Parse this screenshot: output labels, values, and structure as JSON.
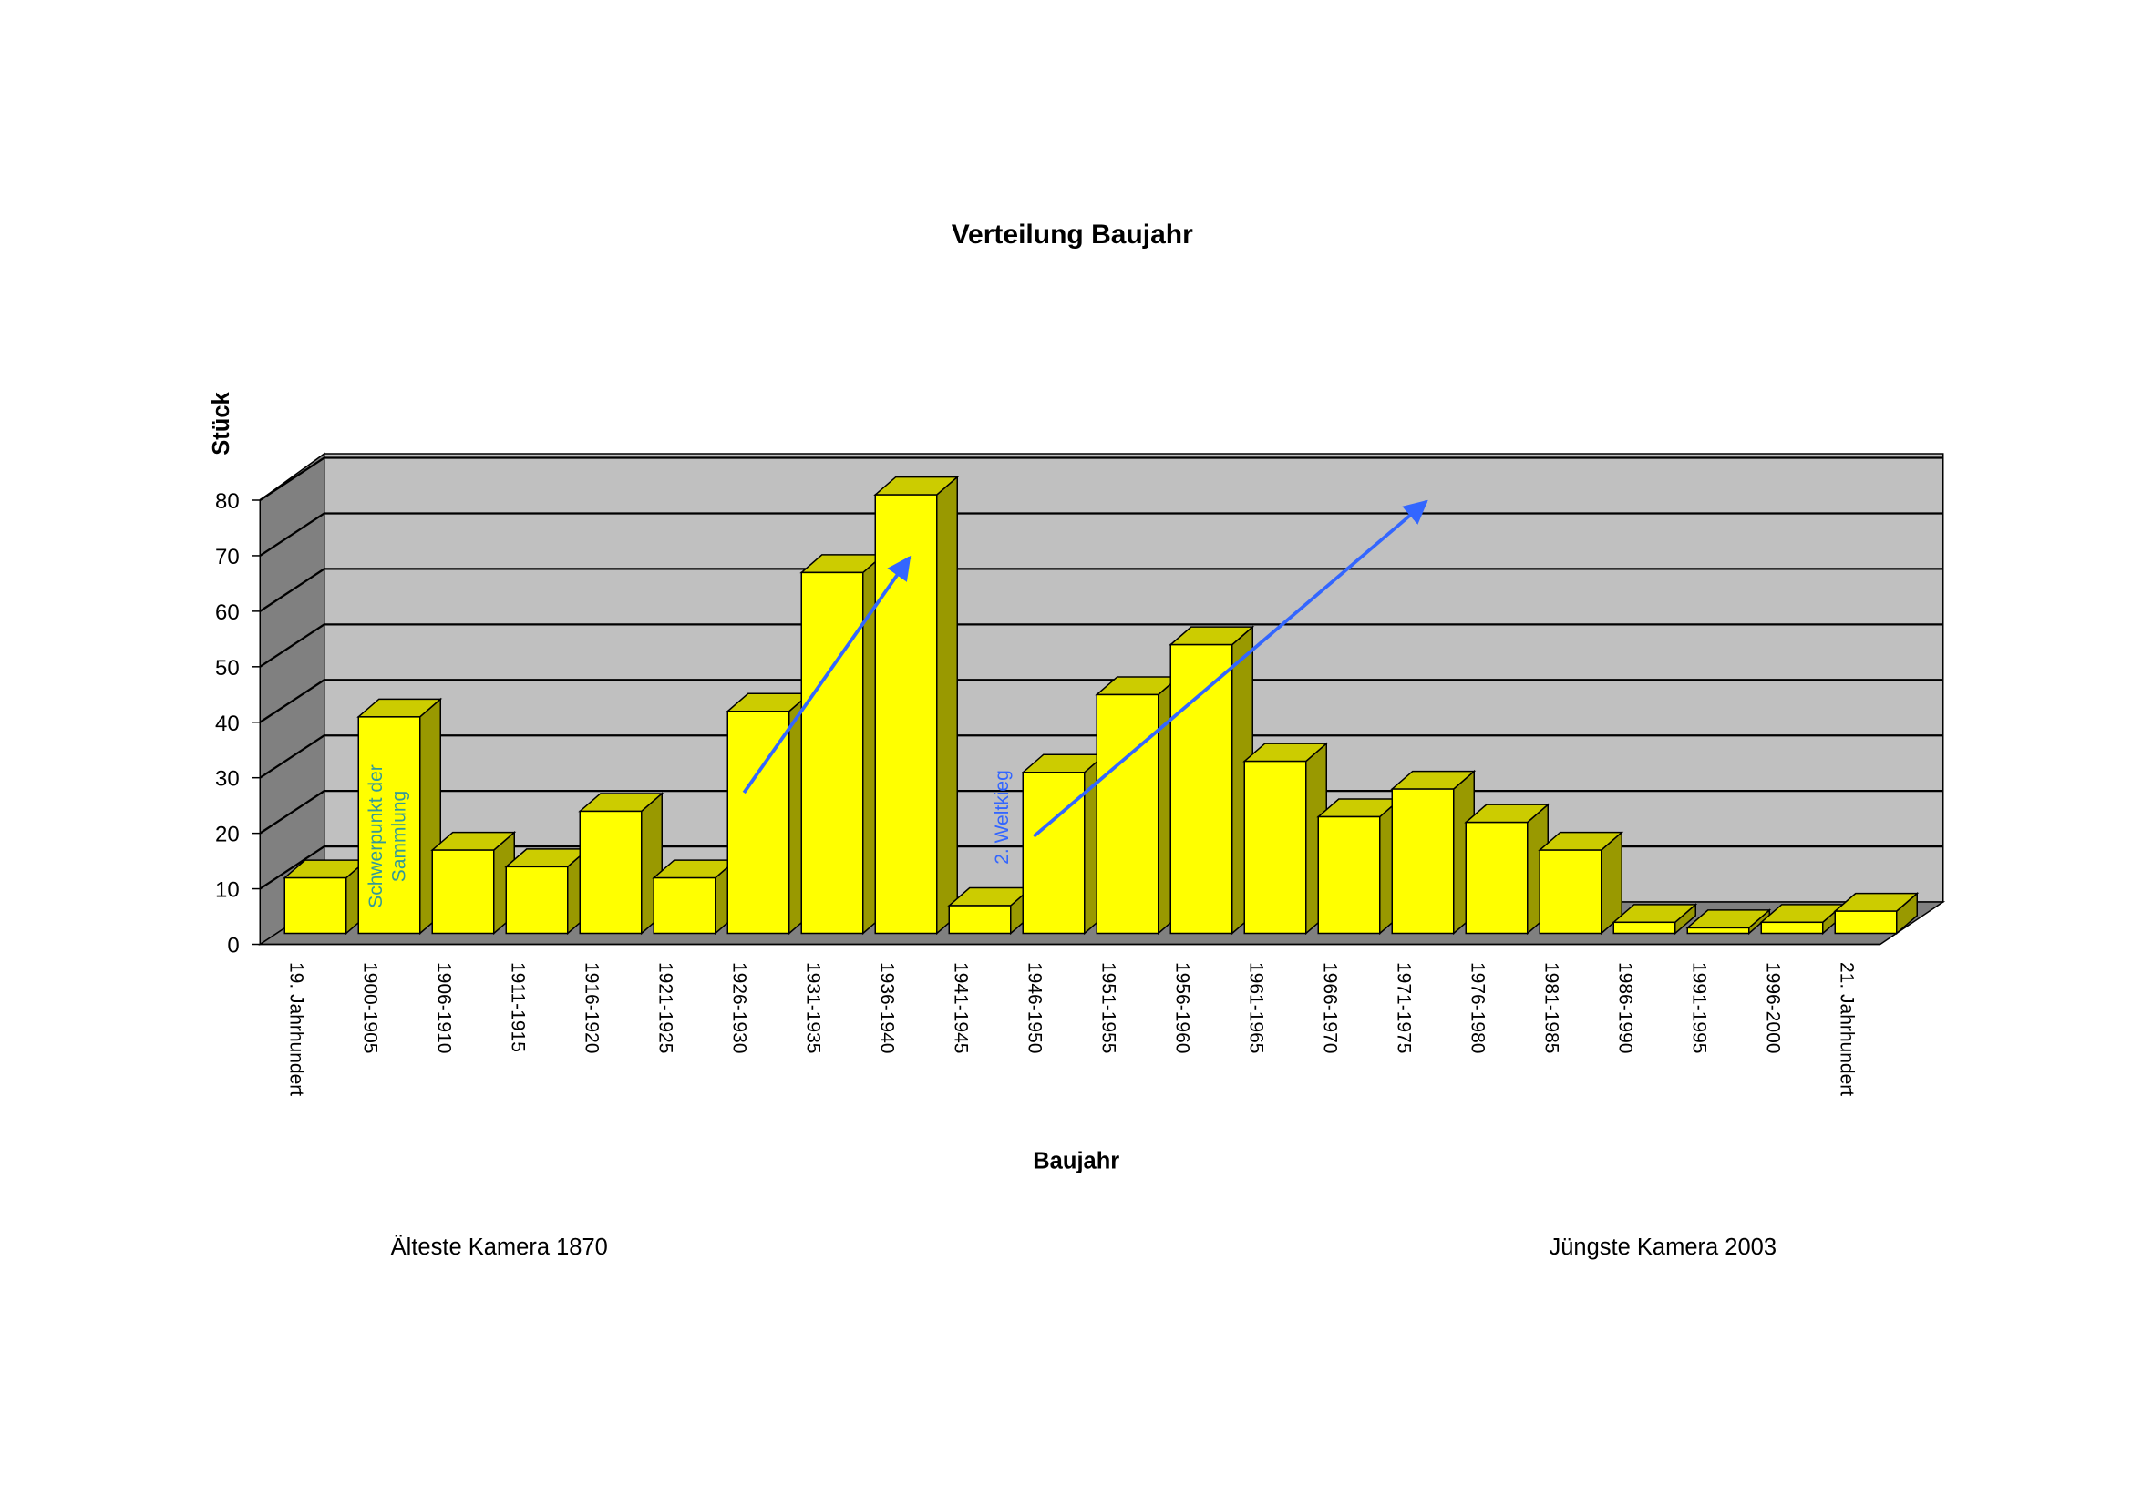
{
  "chart_data": {
    "type": "bar3d",
    "title": "Verteilung Baujahr",
    "y_label": "Stück",
    "x_label": "Baujahr",
    "categories": [
      "19. Jahrhundert",
      "1900-1905",
      "1906-1910",
      "1911-1915",
      "1916-1920",
      "1921-1925",
      "1926-1930",
      "1931-1935",
      "1936-1940",
      "1941-1945",
      "1946-1950",
      "1951-1955",
      "1956-1960",
      "1961-1965",
      "1966-1970",
      "1971-1975",
      "1976-1980",
      "1981-1985",
      "1986-1990",
      "1991-1995",
      "1996-2000",
      "21. Jahrhundert"
    ],
    "values": [
      10,
      39,
      15,
      12,
      22,
      10,
      40,
      65,
      79,
      5,
      29,
      43,
      52,
      31,
      21,
      26,
      20,
      15,
      2,
      1,
      2,
      4
    ],
    "color": "#ffff00",
    "ylim": [
      0,
      80
    ],
    "yticks": [
      0,
      10,
      20,
      30,
      40,
      50,
      60,
      70,
      80
    ],
    "grid": true,
    "annotations": [
      {
        "lines": [
          "Schwerpunkt der",
          "Sammlung"
        ]
      },
      {
        "lines": [
          "2. Weltkieg"
        ]
      }
    ],
    "notes": [
      "Älteste Kamera 1870",
      "Jüngste Kamera 2003"
    ]
  }
}
